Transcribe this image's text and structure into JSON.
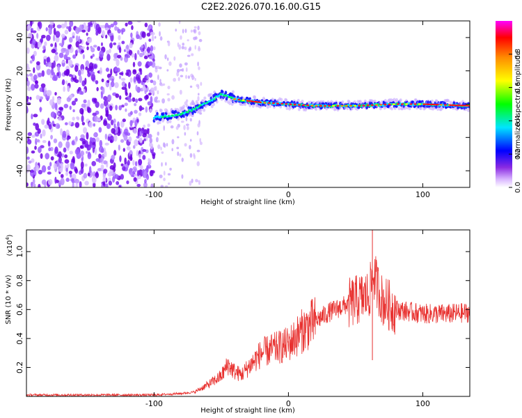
{
  "title": "C2E2.2026.070.16.00.G15",
  "chart_data": [
    {
      "type": "heatmap",
      "xlabel": "Height of straight line (km)",
      "ylabel": "Frequency (Hz)",
      "xlim": [
        -195,
        135
      ],
      "ylim": [
        -50,
        50
      ],
      "xticks": [
        -100,
        0,
        100
      ],
      "yticks": [
        -40,
        -20,
        0,
        20,
        40
      ],
      "colorbar": {
        "label": "Normalized spectral amplitude",
        "range": [
          0,
          1
        ],
        "ticks": [
          0.0,
          0.2,
          0.4,
          0.6,
          0.8
        ],
        "colors": [
          "#ffffff",
          "#d8b4ff",
          "#8a2be2",
          "#0000ff",
          "#00e5ff",
          "#00ff00",
          "#ffff00",
          "#ff8c00",
          "#ff0000",
          "#ff00ff"
        ]
      },
      "signal_track": [
        {
          "x": -100,
          "f": -8
        },
        {
          "x": -90,
          "f": -7
        },
        {
          "x": -80,
          "f": -6
        },
        {
          "x": -70,
          "f": -3
        },
        {
          "x": -60,
          "f": 1
        },
        {
          "x": -50,
          "f": 6
        },
        {
          "x": -45,
          "f": 5
        },
        {
          "x": -40,
          "f": 3
        },
        {
          "x": -30,
          "f": 2
        },
        {
          "x": -20,
          "f": 1
        },
        {
          "x": 0,
          "f": 0
        },
        {
          "x": 20,
          "f": -1
        },
        {
          "x": 50,
          "f": -1
        },
        {
          "x": 80,
          "f": 0
        },
        {
          "x": 100,
          "f": 0
        },
        {
          "x": 135,
          "f": -1
        }
      ],
      "noise_region_x": [
        -195,
        -100
      ]
    },
    {
      "type": "line",
      "xlabel": "Height of straight line (km)",
      "ylabel": "SNR (10 * v/v)",
      "scale_label_base": "(x10",
      "scale_label_exp": "4",
      "scale_label_end": ")",
      "xlim": [
        -195,
        135
      ],
      "ylim": [
        0,
        1.15
      ],
      "xticks": [
        -100,
        0,
        100
      ],
      "yticks": [
        0.2,
        0.4,
        0.6,
        0.8,
        1.0
      ],
      "color": "#e8312f",
      "series": [
        {
          "name": "SNR",
          "x": [
            -195,
            -150,
            -100,
            -80,
            -70,
            -60,
            -50,
            -45,
            -40,
            -35,
            -30,
            -20,
            -10,
            0,
            10,
            20,
            30,
            40,
            50,
            60,
            63,
            70,
            80,
            100,
            120,
            135
          ],
          "y": [
            0.01,
            0.01,
            0.01,
            0.02,
            0.03,
            0.08,
            0.14,
            0.22,
            0.17,
            0.15,
            0.2,
            0.3,
            0.33,
            0.36,
            0.45,
            0.52,
            0.58,
            0.62,
            0.66,
            0.7,
            0.85,
            0.66,
            0.6,
            0.57,
            0.57,
            0.58
          ]
        }
      ]
    }
  ]
}
